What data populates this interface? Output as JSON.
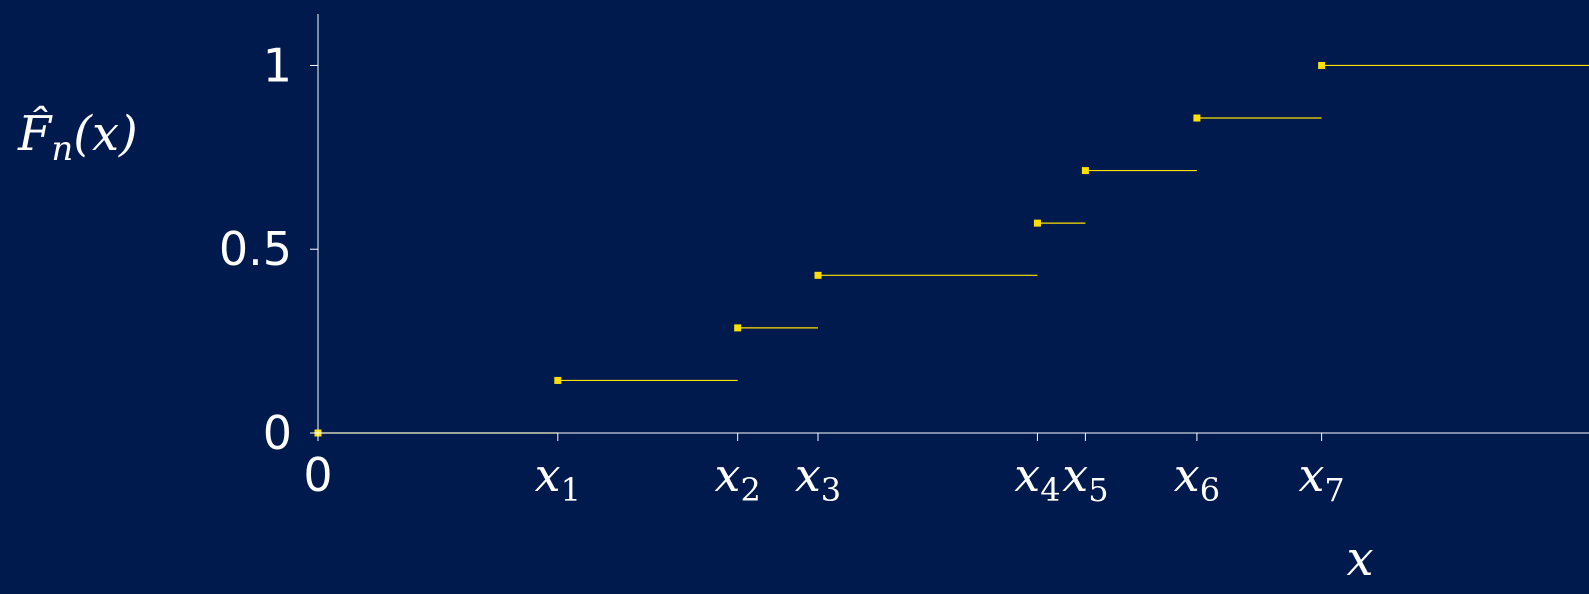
{
  "chart_data": {
    "type": "line",
    "subtype": "step",
    "title": "",
    "ylabel": "F̂n(x)",
    "xlabel": "x",
    "ylabel_parts": {
      "base": "F̂",
      "sub": "n",
      "rest": "(x)"
    },
    "xlim": [
      0,
      1.06
    ],
    "ylim": [
      0,
      1.14
    ],
    "y_ticks": [
      {
        "value": 0,
        "label": "0"
      },
      {
        "value": 0.5,
        "label": "0.5"
      },
      {
        "value": 1,
        "label": "1"
      }
    ],
    "x_ticks": [
      {
        "value": 0,
        "label": "0",
        "sub": ""
      },
      {
        "value": 0.2,
        "label": "x",
        "sub": "1"
      },
      {
        "value": 0.35,
        "label": "x",
        "sub": "2"
      },
      {
        "value": 0.417,
        "label": "x",
        "sub": "3"
      },
      {
        "value": 0.6,
        "label": "x",
        "sub": "4"
      },
      {
        "value": 0.64,
        "label": "x",
        "sub": "5"
      },
      {
        "value": 0.733,
        "label": "x",
        "sub": "6"
      },
      {
        "value": 0.837,
        "label": "x",
        "sub": "7"
      }
    ],
    "steps": [
      {
        "x_start": 0,
        "x_end": 0.2,
        "y": 0
      },
      {
        "x_start": 0.2,
        "x_end": 0.35,
        "y": 0.143
      },
      {
        "x_start": 0.35,
        "x_end": 0.417,
        "y": 0.286
      },
      {
        "x_start": 0.417,
        "x_end": 0.6,
        "y": 0.429
      },
      {
        "x_start": 0.6,
        "x_end": 0.64,
        "y": 0.571
      },
      {
        "x_start": 0.64,
        "x_end": 0.733,
        "y": 0.714
      },
      {
        "x_start": 0.733,
        "x_end": 0.837,
        "y": 0.857
      },
      {
        "x_start": 0.837,
        "x_end": 1.06,
        "y": 1
      }
    ],
    "colors": {
      "background": "#001a4d",
      "axis": "#ffffff",
      "series": "#ffe000"
    },
    "grid": false,
    "legend": "none"
  }
}
